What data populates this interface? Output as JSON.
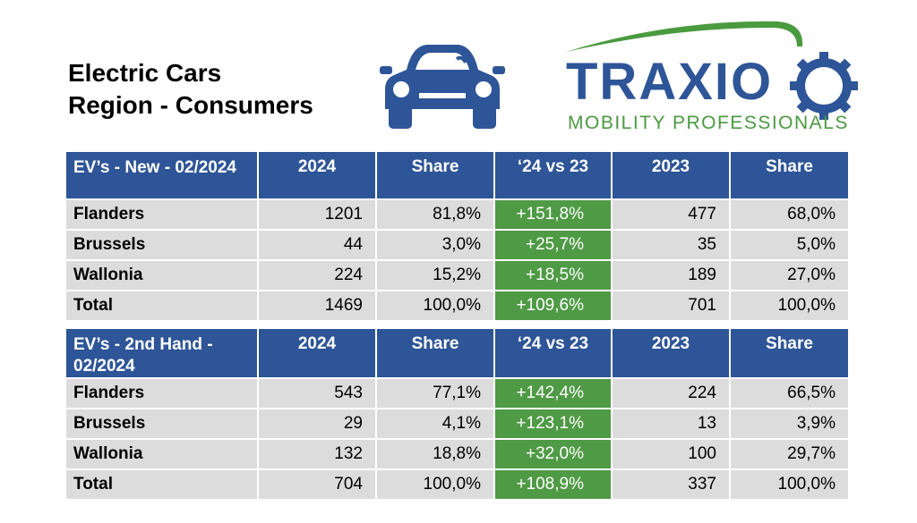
{
  "title": {
    "line1": "Electric Cars",
    "line2": "Region - Consumers"
  },
  "logo": {
    "brand": "TRAXIO",
    "tagline": "MOBILITY PROFESSIONALS",
    "brand_color": "#2e5597",
    "accent_color": "#4a9a3f"
  },
  "car_icon": {
    "name": "car-icon",
    "color": "#2e5597"
  },
  "tables": [
    {
      "header": [
        "EV’s - New - 02/2024",
        "2024",
        "Share",
        "‘24 vs 23",
        "2023",
        "Share"
      ],
      "rows": [
        [
          "Flanders",
          "1201",
          "81,8%",
          "+151,8%",
          "477",
          "68,0%"
        ],
        [
          "Brussels",
          "44",
          "3,0%",
          "+25,7%",
          "35",
          "5,0%"
        ],
        [
          "Wallonia",
          "224",
          "15,2%",
          "+18,5%",
          "189",
          "27,0%"
        ],
        [
          "Total",
          "1469",
          "100,0%",
          "+109,6%",
          "701",
          "100,0%"
        ]
      ]
    },
    {
      "header": [
        "EV’s - 2nd Hand - 02/2024",
        "2024",
        "Share",
        "‘24 vs 23",
        "2023",
        "Share"
      ],
      "rows": [
        [
          "Flanders",
          "543",
          "77,1%",
          "+142,4%",
          "224",
          "66,5%"
        ],
        [
          "Brussels",
          "29",
          "4,1%",
          "+123,1%",
          "13",
          "3,9%"
        ],
        [
          "Wallonia",
          "132",
          "18,8%",
          "+32,0%",
          "100",
          "29,7%"
        ],
        [
          "Total",
          "704",
          "100,0%",
          "+108,9%",
          "337",
          "100,0%"
        ]
      ]
    }
  ],
  "colors": {
    "header_bg": "#2e5597",
    "cell_bg": "#dcdcdc",
    "growth_bg": "#4f9a45"
  }
}
